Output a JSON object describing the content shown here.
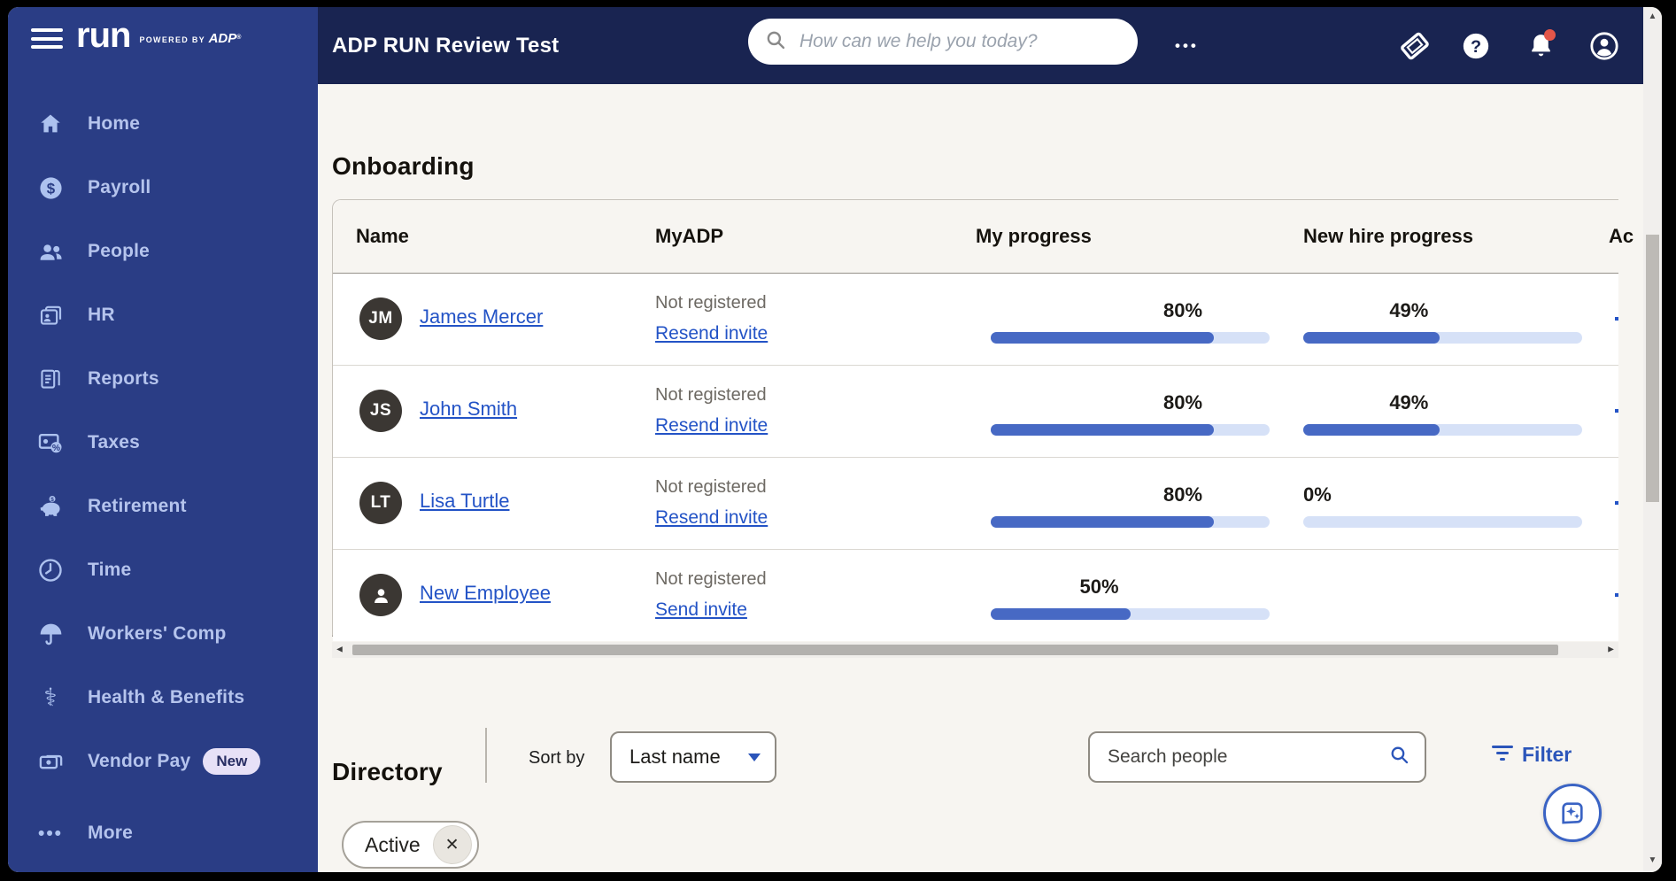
{
  "colors": {
    "sidebar": "#2a3d85",
    "topbar": "#192451",
    "page_bg": "#f7f5f1",
    "accent_blue": "#2353c6",
    "progress_fill": "#4769c4",
    "progress_track": "#d6e1f7",
    "badge_bg": "#e7e1f7",
    "notification_red": "#e45649"
  },
  "sidebar": {
    "logo": {
      "run": "run",
      "powered_by": "POWERED BY",
      "adp": "ADP",
      "reg": "®"
    },
    "items": [
      {
        "label": "Home",
        "icon": "home"
      },
      {
        "label": "Payroll",
        "icon": "dollar"
      },
      {
        "label": "People",
        "icon": "people"
      },
      {
        "label": "HR",
        "icon": "folder-person"
      },
      {
        "label": "Reports",
        "icon": "documents"
      },
      {
        "label": "Taxes",
        "icon": "tax-card"
      },
      {
        "label": "Retirement",
        "icon": "piggy-bank"
      },
      {
        "label": "Time",
        "icon": "clock"
      },
      {
        "label": "Workers' Comp",
        "icon": "umbrella"
      },
      {
        "label": "Health & Benefits",
        "icon": "caduceus"
      },
      {
        "label": "Vendor Pay",
        "icon": "money-stack",
        "badge": "New"
      },
      {
        "label": "More",
        "icon": "ellipsis"
      }
    ]
  },
  "header": {
    "title": "ADP RUN Review Test",
    "search_placeholder": "How can we help you today?"
  },
  "onboarding": {
    "title": "Onboarding",
    "columns": [
      "Name",
      "MyADP",
      "My progress",
      "New hire progress",
      "Ac"
    ],
    "rows": [
      {
        "initials": "JM",
        "name": "James Mercer",
        "myadp_status": "Not registered",
        "myadp_action": "Resend invite",
        "my_progress": 80,
        "my_progress_label": "80%",
        "new_hire_progress": 49,
        "new_hire_progress_label": "49%"
      },
      {
        "initials": "JS",
        "name": "John Smith",
        "myadp_status": "Not registered",
        "myadp_action": "Resend invite",
        "my_progress": 80,
        "my_progress_label": "80%",
        "new_hire_progress": 49,
        "new_hire_progress_label": "49%"
      },
      {
        "initials": "LT",
        "name": "Lisa Turtle",
        "myadp_status": "Not registered",
        "myadp_action": "Resend invite",
        "my_progress": 80,
        "my_progress_label": "80%",
        "new_hire_progress": 0,
        "new_hire_progress_label": "0%"
      },
      {
        "initials": null,
        "avatar_icon": "person",
        "name": "New Employee",
        "myadp_status": "Not registered",
        "myadp_action": "Send invite",
        "my_progress": 50,
        "my_progress_label": "50%",
        "new_hire_progress": null,
        "new_hire_progress_label": null
      }
    ]
  },
  "directory": {
    "title": "Directory",
    "sort_by_label": "Sort by",
    "sort_value": "Last name",
    "search_placeholder": "Search people",
    "filter_label": "Filter"
  },
  "filters": [
    {
      "label": "Active"
    }
  ]
}
